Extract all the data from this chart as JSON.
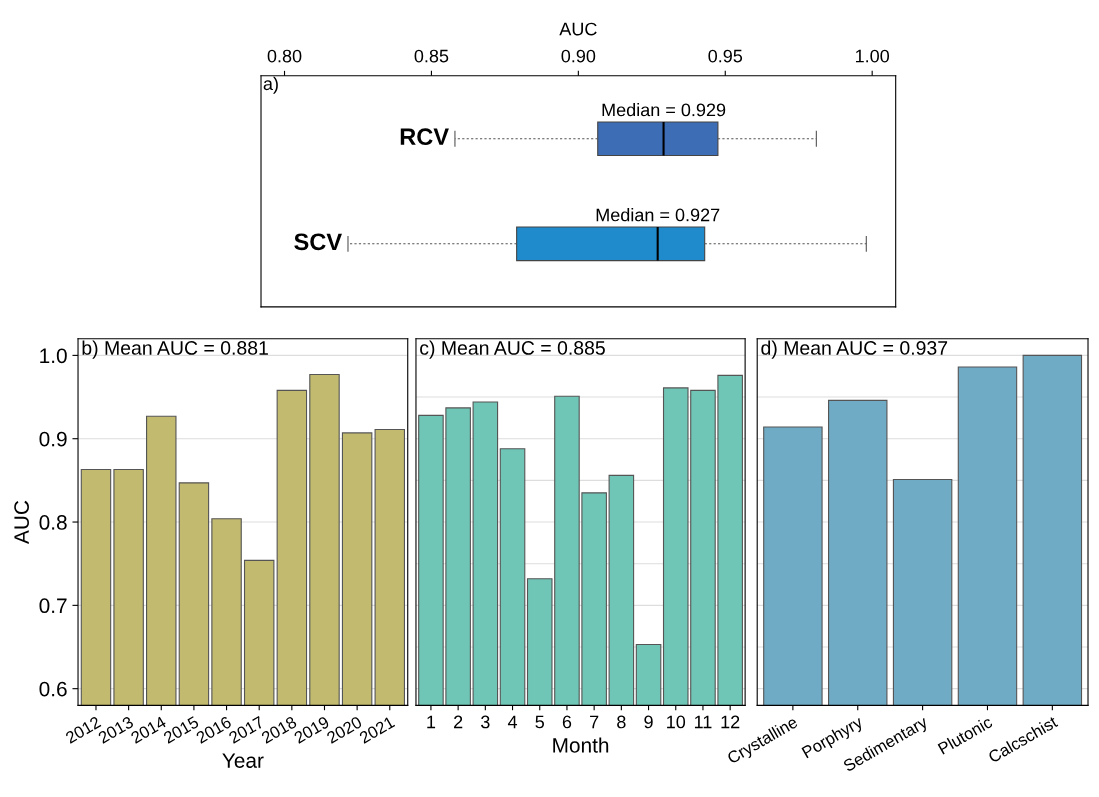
{
  "chart_data": [
    {
      "type": "box",
      "orientation": "horizontal",
      "title": "a)",
      "xlabel": "AUC",
      "categories": [
        "RCV",
        "SCV"
      ],
      "colors": [
        "#3d6db5",
        "#1f8bcc"
      ],
      "boxes": [
        {
          "low": 0.858,
          "q1": 0.9066,
          "median": 0.929,
          "q3": 0.9475,
          "high": 0.981
        },
        {
          "low": 0.8216,
          "q1": 0.879,
          "median": 0.927,
          "q3": 0.943,
          "high": 0.998
        }
      ],
      "annotations": [
        {
          "text": "Median = 0.929",
          "x": 0.929,
          "y": "RCV"
        },
        {
          "text": "Median = 0.927",
          "x": 0.927,
          "y": "SCV"
        }
      ],
      "xlim": [
        0.792,
        1.008
      ],
      "xticks": [
        {
          "value": 0.8,
          "label": "0.80"
        },
        {
          "value": 0.85,
          "label": "0.85"
        },
        {
          "value": 0.9,
          "label": "0.90"
        },
        {
          "value": 0.95,
          "label": "0.95"
        },
        {
          "value": 1.0,
          "label": "1.00"
        }
      ],
      "grid": false
    },
    {
      "type": "bar",
      "title": "b) Mean AUC = 0.881",
      "xlabel": "Year",
      "ylabel": "AUC",
      "color": "#c2ba6f",
      "categories": [
        "2012",
        "2013",
        "2014",
        "2015",
        "2016",
        "2017",
        "2018",
        "2019",
        "2020",
        "2021"
      ],
      "values": [
        0.863,
        0.863,
        0.927,
        0.847,
        0.804,
        0.754,
        0.958,
        0.977,
        0.907,
        0.911
      ],
      "ylim": [
        0.58,
        1.02
      ],
      "yticks": [
        0.6,
        0.7,
        0.8,
        0.9,
        {
          "value": 1.0,
          "label": "1.0"
        }
      ],
      "grid": "y"
    },
    {
      "type": "bar",
      "title": "c) Mean AUC = 0.885",
      "xlabel": "Month",
      "color": "#70c6b6",
      "categories": [
        "1",
        "2",
        "3",
        "4",
        "5",
        "6",
        "7",
        "8",
        "9",
        "10",
        "11",
        "12"
      ],
      "values": [
        0.928,
        0.937,
        0.944,
        0.888,
        0.732,
        0.951,
        0.835,
        0.856,
        0.653,
        0.961,
        0.958,
        0.976
      ],
      "ylim": [
        0.58,
        1.02
      ],
      "yticks": [
        {
          "value": 0.6,
          "label": null
        },
        {
          "value": 0.65,
          "label": null
        },
        {
          "value": 0.7,
          "label": null
        },
        {
          "value": 0.75,
          "label": null
        },
        {
          "value": 0.8,
          "label": null
        },
        {
          "value": 0.85,
          "label": null
        },
        {
          "value": 0.9,
          "label": null
        },
        {
          "value": 0.95,
          "label": null
        },
        {
          "value": 1.0,
          "label": null
        }
      ],
      "grid": "y",
      "tick_labels": "x"
    },
    {
      "type": "bar",
      "title": "d) Mean AUC = 0.937",
      "color": "#70abc6",
      "categories": [
        "Crystalline",
        "Porphyry",
        "Sedimentary",
        "Plutonic",
        "Calcschist"
      ],
      "values": [
        0.914,
        0.946,
        0.851,
        0.986,
        1.0
      ],
      "ylim": [
        0.58,
        1.02
      ],
      "yticks": [
        {
          "value": 0.6,
          "label": null
        },
        {
          "value": 0.65,
          "label": null
        },
        {
          "value": 0.7,
          "label": null
        },
        {
          "value": 0.75,
          "label": null
        },
        {
          "value": 0.8,
          "label": null
        },
        {
          "value": 0.85,
          "label": null
        },
        {
          "value": 0.9,
          "label": null
        },
        {
          "value": 0.95,
          "label": null
        },
        {
          "value": 1.0,
          "label": null
        }
      ],
      "grid": "y",
      "tick_labels": "x"
    }
  ]
}
